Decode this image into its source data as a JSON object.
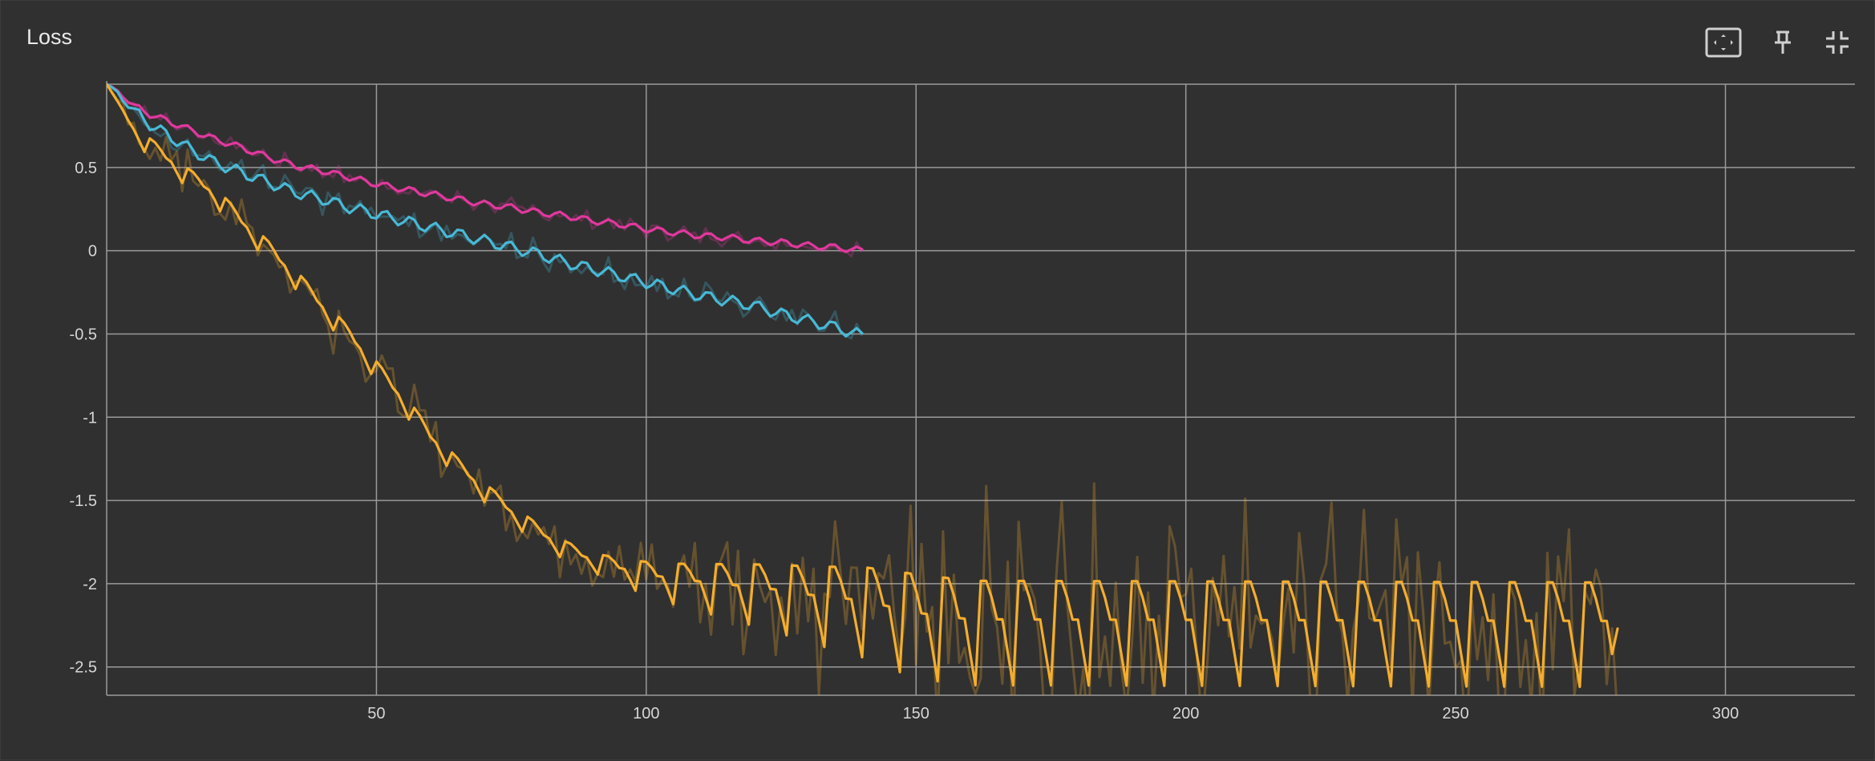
{
  "card": {
    "title": "Loss",
    "actions": [
      {
        "name": "fit-domain-button",
        "icon": "fit-to-screen-icon"
      },
      {
        "name": "pin-button",
        "icon": "pin-icon"
      },
      {
        "name": "collapse-button",
        "icon": "collapse-icon"
      },
      {
        "name": "more-button",
        "icon": "more-vert-icon"
      }
    ]
  },
  "colors": {
    "background": "#303030",
    "grid": "#9a9a9a",
    "magenta": "#e0399d",
    "cyan": "#48b9d6",
    "orange": "#f4ad2d"
  },
  "chart_data": {
    "type": "line",
    "title": "Loss",
    "xlabel": "",
    "ylabel": "",
    "xlim": [
      0,
      324
    ],
    "ylim": [
      -2.67,
      1.0
    ],
    "x_ticks": [
      50,
      100,
      150,
      200,
      250,
      300
    ],
    "x_tick_labels": [
      "50",
      "100",
      "150",
      "200",
      "250",
      "300"
    ],
    "y_ticks": [
      0.5,
      0,
      -0.5,
      -1,
      -1.5,
      -2,
      -2.5
    ],
    "y_tick_labels": [
      "0.5",
      "0",
      "-0.5",
      "-1",
      "-1.5",
      "-2",
      "-2.5"
    ],
    "grid": true,
    "legend": "none",
    "series": [
      {
        "color": "#e0399d",
        "smoothed_points": [
          [
            0,
            1.0
          ],
          [
            2,
            0.96
          ],
          [
            5,
            0.87
          ],
          [
            8,
            0.82
          ],
          [
            12,
            0.77
          ],
          [
            16,
            0.72
          ],
          [
            20,
            0.67
          ],
          [
            25,
            0.62
          ],
          [
            30,
            0.56
          ],
          [
            35,
            0.51
          ],
          [
            40,
            0.48
          ],
          [
            45,
            0.44
          ],
          [
            50,
            0.4
          ],
          [
            55,
            0.37
          ],
          [
            60,
            0.34
          ],
          [
            65,
            0.31
          ],
          [
            70,
            0.28
          ],
          [
            75,
            0.26
          ],
          [
            80,
            0.23
          ],
          [
            85,
            0.21
          ],
          [
            90,
            0.18
          ],
          [
            95,
            0.16
          ],
          [
            100,
            0.13
          ],
          [
            105,
            0.11
          ],
          [
            110,
            0.09
          ],
          [
            115,
            0.08
          ],
          [
            120,
            0.06
          ],
          [
            125,
            0.05
          ],
          [
            130,
            0.03
          ],
          [
            135,
            0.02
          ],
          [
            140,
            0.0
          ]
        ],
        "wave_amplitude": 0.02,
        "raw_amplitude": 0.03
      },
      {
        "color": "#48b9d6",
        "smoothed_points": [
          [
            0,
            1.0
          ],
          [
            2,
            0.95
          ],
          [
            5,
            0.84
          ],
          [
            8,
            0.76
          ],
          [
            12,
            0.68
          ],
          [
            16,
            0.6
          ],
          [
            20,
            0.53
          ],
          [
            25,
            0.47
          ],
          [
            30,
            0.41
          ],
          [
            35,
            0.35
          ],
          [
            40,
            0.31
          ],
          [
            45,
            0.26
          ],
          [
            50,
            0.22
          ],
          [
            55,
            0.18
          ],
          [
            60,
            0.14
          ],
          [
            65,
            0.1
          ],
          [
            70,
            0.06
          ],
          [
            75,
            0.02
          ],
          [
            80,
            -0.02
          ],
          [
            85,
            -0.07
          ],
          [
            90,
            -0.11
          ],
          [
            95,
            -0.15
          ],
          [
            100,
            -0.19
          ],
          [
            105,
            -0.23
          ],
          [
            110,
            -0.27
          ],
          [
            115,
            -0.3
          ],
          [
            120,
            -0.33
          ],
          [
            125,
            -0.38
          ],
          [
            130,
            -0.42
          ],
          [
            135,
            -0.46
          ],
          [
            140,
            -0.51
          ]
        ],
        "wave_amplitude": 0.035,
        "raw_amplitude": 0.05
      },
      {
        "color": "#f4ad2d",
        "smoothed_points": [
          [
            0,
            1.0
          ],
          [
            2,
            0.88
          ],
          [
            5,
            0.72
          ],
          [
            8,
            0.62
          ],
          [
            12,
            0.52
          ],
          [
            15,
            0.44
          ],
          [
            20,
            0.33
          ],
          [
            25,
            0.16
          ],
          [
            30,
            0.0
          ],
          [
            35,
            -0.17
          ],
          [
            40,
            -0.35
          ],
          [
            45,
            -0.52
          ],
          [
            50,
            -0.72
          ],
          [
            55,
            -0.91
          ],
          [
            60,
            -1.13
          ],
          [
            65,
            -1.3
          ],
          [
            70,
            -1.45
          ],
          [
            75,
            -1.58
          ],
          [
            80,
            -1.7
          ],
          [
            85,
            -1.8
          ],
          [
            90,
            -1.87
          ],
          [
            95,
            -1.92
          ],
          [
            100,
            -1.96
          ],
          [
            105,
            -1.99
          ],
          [
            110,
            -2.01
          ],
          [
            115,
            -2.03
          ],
          [
            120,
            -2.05
          ],
          [
            125,
            -2.07
          ],
          [
            130,
            -2.1
          ],
          [
            135,
            -2.12
          ],
          [
            140,
            -2.14
          ],
          [
            145,
            -2.18
          ],
          [
            150,
            -2.22
          ],
          [
            160,
            -2.26
          ],
          [
            280,
            -2.27
          ]
        ],
        "wave_amplitude_early": 0.06,
        "wave_amplitude_late": 0.33,
        "late_wave_bias": -0.1,
        "raw_amplitude_early": 0.1,
        "raw_amplitude_late": 0.42
      }
    ]
  }
}
